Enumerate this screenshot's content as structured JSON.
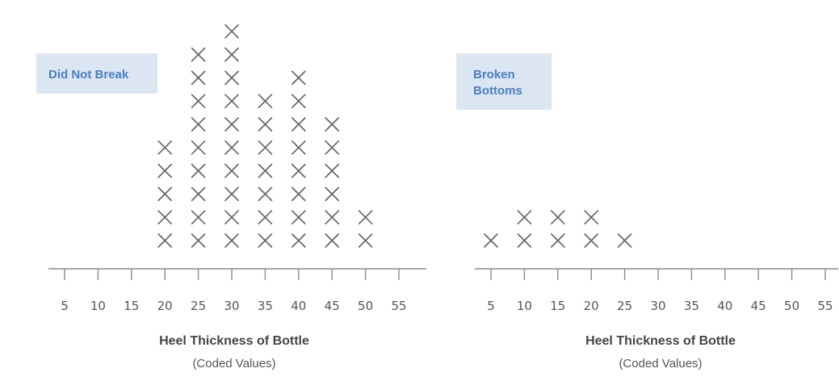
{
  "colors": {
    "mark": "#666666",
    "axis": "#8a8a8a",
    "badge_bg": "#dbe6f2",
    "badge_text": "#4a7fc1"
  },
  "chart_data": [
    {
      "type": "dot-plot",
      "title": "Did Not Break",
      "xlabel": "Heel Thickness of Bottle",
      "xlabel_sub": "(Coded Values)",
      "ticks": [
        "5",
        "10",
        "15",
        "20",
        "25",
        "30",
        "35",
        "40",
        "45",
        "50",
        "55"
      ],
      "xlim": [
        5,
        55
      ],
      "x": [
        20,
        25,
        30,
        35,
        40,
        45,
        50
      ],
      "counts": [
        5,
        9,
        10,
        7,
        8,
        6,
        2
      ],
      "grid": false
    },
    {
      "type": "dot-plot",
      "title": "Broken Bottoms",
      "xlabel": "Heel Thickness of Bottle",
      "xlabel_sub": "(Coded Values)",
      "ticks": [
        "5",
        "10",
        "15",
        "20",
        "25",
        "30",
        "35",
        "40",
        "45",
        "50",
        "55"
      ],
      "xlim": [
        5,
        55
      ],
      "x": [
        5,
        10,
        15,
        20,
        25
      ],
      "counts": [
        1,
        2,
        2,
        2,
        1
      ],
      "grid": false
    }
  ]
}
